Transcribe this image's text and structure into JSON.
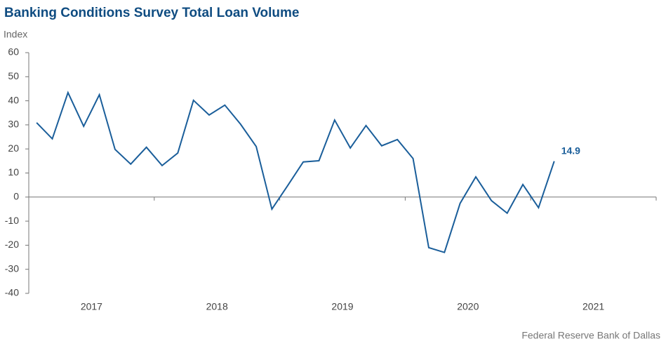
{
  "chart_data": {
    "type": "line",
    "title": "Banking Conditions Survey Total Loan Volume",
    "y_label": "Index",
    "source": "Federal Reserve Bank of Dallas",
    "categories": [
      "2017",
      "2018",
      "2019",
      "2020",
      "2021"
    ],
    "x": [
      2017.0625,
      2017.1875,
      2017.3125,
      2017.4375,
      2017.5625,
      2017.6875,
      2017.8125,
      2017.9375,
      2018.0625,
      2018.1875,
      2018.3125,
      2018.4375,
      2018.5625,
      2018.6875,
      2018.8125,
      2018.9375,
      2019.0625,
      2019.1875,
      2019.3125,
      2019.4375,
      2019.5625,
      2019.6875,
      2019.8125,
      2019.9375,
      2020.0625,
      2020.1875,
      2020.3125,
      2020.4375,
      2020.5625,
      2020.6875,
      2020.8125,
      2020.9375,
      2021.0625,
      2021.1875
    ],
    "series": [
      {
        "name": "Total Loan Volume",
        "color": "#1a5e9a",
        "values": [
          30.9,
          24.2,
          43.4,
          29.4,
          42.5,
          19.8,
          13.7,
          20.7,
          13.1,
          18.3,
          40.2,
          34.1,
          38.2,
          30.3,
          21.0,
          -5.0,
          4.7,
          14.6,
          15.1,
          32.0,
          20.4,
          29.7,
          21.3,
          23.9,
          16.0,
          -21.0,
          -23.0,
          -2.6,
          8.4,
          -1.5,
          -6.7,
          5.2,
          -4.4,
          14.9
        ]
      }
    ],
    "xlim": [
      2017,
      2022
    ],
    "xticks": [
      2017,
      2018,
      2019,
      2020,
      2021,
      2022
    ],
    "ylim": [
      -40,
      60
    ],
    "yticks": [
      -40,
      -30,
      -20,
      -10,
      0,
      10,
      20,
      30,
      40,
      50,
      60
    ],
    "grid": false
  }
}
